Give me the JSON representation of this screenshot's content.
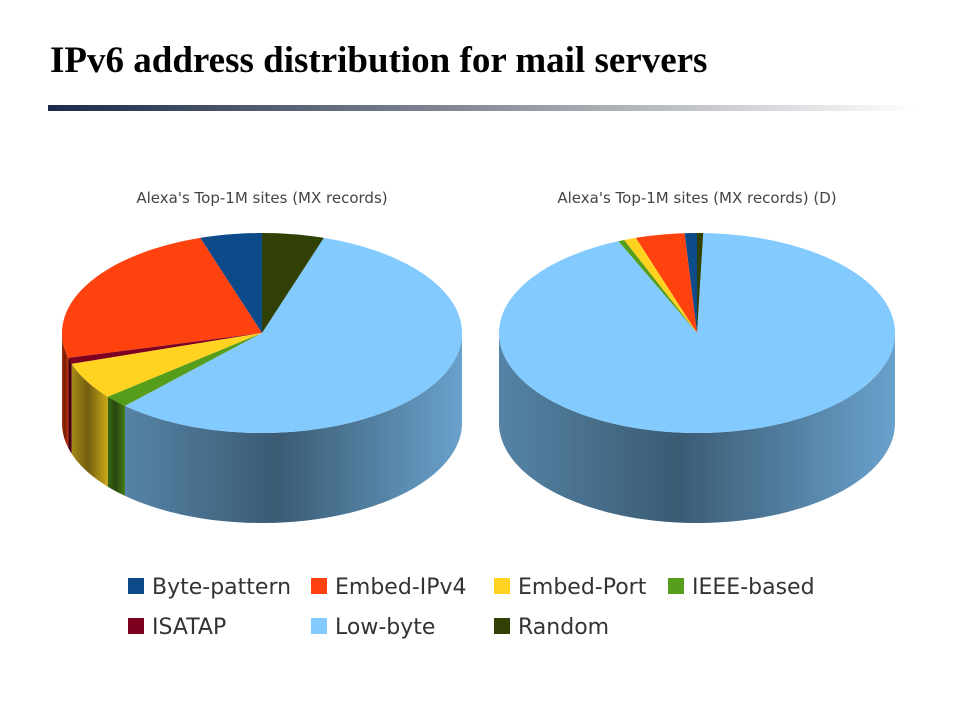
{
  "title": "IPv6 address distribution for mail servers",
  "chart_data": [
    {
      "type": "pie",
      "title": "Alexa's Top-1M sites (MX records)",
      "categories": [
        "Byte-pattern",
        "Embed-IPv4",
        "Embed-Port",
        "IEEE-based",
        "ISATAP",
        "Low-byte",
        "Random"
      ],
      "values": [
        5,
        24,
        6,
        2,
        1,
        57,
        5
      ],
      "colors": [
        "#0d4a8a",
        "#ff420e",
        "#ffd320",
        "#579d1c",
        "#7e0021",
        "#83caff",
        "#314004"
      ]
    },
    {
      "type": "pie",
      "title": "Alexa's Top-1M sites (MX records) (D)",
      "categories": [
        "Byte-pattern",
        "Embed-IPv4",
        "Embed-Port",
        "IEEE-based",
        "ISATAP",
        "Low-byte",
        "Random"
      ],
      "values": [
        1,
        4,
        1,
        0.5,
        0,
        93,
        0.5
      ],
      "colors": [
        "#0d4a8a",
        "#ff420e",
        "#ffd320",
        "#579d1c",
        "#7e0021",
        "#83caff",
        "#314004"
      ]
    }
  ]
}
